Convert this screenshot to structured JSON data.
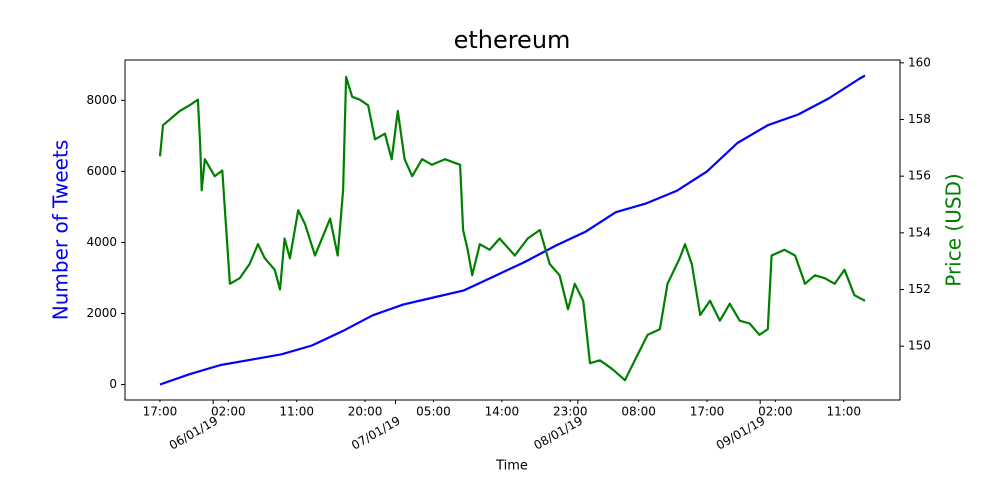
{
  "chart_data": {
    "type": "line",
    "title": "ethereum",
    "xlabel": "Time",
    "ylabel": "Number of Tweets",
    "y2label": "Price (USD)",
    "ylabel_color": "#0000ff",
    "y2label_color": "#008000",
    "xlim": [
      -4.6,
      97.4
    ],
    "xticks": [
      {
        "value": 0,
        "label": "17:00"
      },
      {
        "value": 9,
        "label": "02:00"
      },
      {
        "value": 18,
        "label": "11:00"
      },
      {
        "value": 27,
        "label": "20:00"
      },
      {
        "value": 36,
        "label": "05:00"
      },
      {
        "value": 45,
        "label": "14:00"
      },
      {
        "value": 54,
        "label": "23:00"
      },
      {
        "value": 63,
        "label": "08:00"
      },
      {
        "value": 72,
        "label": "17:00"
      },
      {
        "value": 81,
        "label": "02:00"
      },
      {
        "value": 90,
        "label": "11:00"
      }
    ],
    "xticks_major": [
      {
        "value": 7,
        "label": "06/01/19"
      },
      {
        "value": 31,
        "label": "07/01/19"
      },
      {
        "value": 55,
        "label": "08/01/19"
      },
      {
        "value": 79,
        "label": "09/01/19"
      }
    ],
    "ylim": [
      -435,
      9135
    ],
    "yticks": [
      0,
      2000,
      4000,
      6000,
      8000
    ],
    "y2lim": [
      148.1,
      160.1
    ],
    "y2ticks": [
      150,
      152,
      154,
      156,
      158,
      160
    ],
    "series": [
      {
        "color": "#0000ff",
        "axis": "y",
        "x": [
          0,
          4,
          8,
          12,
          16,
          20,
          24,
          28,
          32,
          36,
          40,
          44,
          48,
          52,
          56,
          60,
          64,
          68,
          72,
          76,
          80,
          84,
          88,
          92,
          92.8
        ],
        "values": [
          0,
          300,
          550,
          700,
          850,
          1100,
          1500,
          1950,
          2250,
          2450,
          2650,
          3050,
          3450,
          3900,
          4300,
          4850,
          5100,
          5450,
          6000,
          6800,
          7300,
          7600,
          8050,
          8600,
          8700
        ]
      },
      {
        "color": "#008000",
        "axis": "y2",
        "x": [
          0,
          0.4,
          1.3,
          2.6,
          3.9,
          5.0,
          5.3,
          5.5,
          5.9,
          7.2,
          8.2,
          8.6,
          9.2,
          10.5,
          11.8,
          12.9,
          13.8,
          15.1,
          15.8,
          16.4,
          17.1,
          18.2,
          19.1,
          20.4,
          22.4,
          23.4,
          24.1,
          24.5,
          25.3,
          26.3,
          27.4,
          28.3,
          29.6,
          30.5,
          31.3,
          32.2,
          33.2,
          34.5,
          35.8,
          37.5,
          39.5,
          39.9,
          40.5,
          41.1,
          42.1,
          43.4,
          44.7,
          46.7,
          48.4,
          50.0,
          51.3,
          52.6,
          53.7,
          54.6,
          55.7,
          56.6,
          57.9,
          59.5,
          61.2,
          62.5,
          64.2,
          65.8,
          66.8,
          68.4,
          69.1,
          70.0,
          71.1,
          72.4,
          73.7,
          75.0,
          76.3,
          77.6,
          78.9,
          80.0,
          80.5,
          82.2,
          83.6,
          84.9,
          86.2,
          87.5,
          88.8,
          90.1,
          91.4,
          92.8
        ],
        "values": [
          156.7,
          157.8,
          158,
          158.3,
          158.5,
          158.7,
          157.1,
          155.5,
          156.6,
          156.0,
          156.2,
          154.6,
          152.2,
          152.4,
          152.9,
          153.6,
          153.1,
          152.7,
          152.0,
          153.8,
          153.1,
          154.8,
          154.3,
          153.2,
          154.5,
          153.2,
          155.5,
          159.5,
          158.8,
          158.7,
          158.5,
          157.3,
          157.5,
          156.6,
          158.3,
          156.6,
          156.0,
          156.6,
          156.4,
          156.6,
          156.4,
          154.1,
          153.4,
          152.5,
          153.6,
          153.4,
          153.8,
          153.2,
          153.8,
          154.1,
          152.9,
          152.5,
          151.3,
          152.2,
          151.6,
          149.4,
          149.5,
          149.2,
          148.8,
          149.5,
          150.4,
          150.6,
          152.2,
          153.1,
          153.6,
          152.9,
          151.1,
          151.6,
          150.9,
          151.5,
          150.9,
          150.8,
          150.4,
          150.6,
          153.2,
          153.4,
          153.2,
          152.2,
          152.5,
          152.4,
          152.2,
          152.7,
          151.8,
          151.6
        ]
      }
    ]
  }
}
